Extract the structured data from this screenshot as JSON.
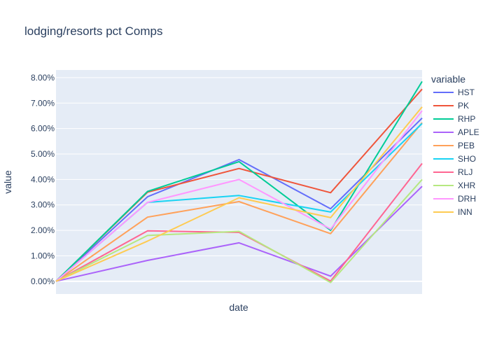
{
  "chart_data": {
    "type": "line",
    "title": "lodging/resorts pct Comps",
    "xlabel": "date",
    "ylabel": "value",
    "legend_title": "variable",
    "legend_position": "right",
    "grid": true,
    "background_color": "#E5ECF6",
    "ylim": [
      -0.005,
      0.083
    ],
    "yticks": [
      0,
      0.01,
      0.02,
      0.03,
      0.04,
      0.05,
      0.06,
      0.07,
      0.08
    ],
    "ytick_labels": [
      "0.00%",
      "1.00%",
      "2.00%",
      "3.00%",
      "4.00%",
      "5.00%",
      "6.00%",
      "7.00%",
      "8.00%"
    ],
    "series": [
      {
        "name": "HST",
        "color": "#636EFA",
        "values": [
          0,
          0.0332,
          0.0478,
          0.0285,
          0.0641
        ]
      },
      {
        "name": "PK",
        "color": "#EF553B",
        "values": [
          0,
          0.035,
          0.0443,
          0.0348,
          0.0755
        ]
      },
      {
        "name": "RHP",
        "color": "#00CC96",
        "values": [
          0,
          0.0353,
          0.047,
          0.02,
          0.0785
        ]
      },
      {
        "name": "APLE",
        "color": "#AB63FA",
        "values": [
          0,
          0.0082,
          0.0151,
          0.002,
          0.0373
        ]
      },
      {
        "name": "PEB",
        "color": "#FFA15A",
        "values": [
          0,
          0.0252,
          0.0313,
          0.0187,
          0.0623
        ]
      },
      {
        "name": "SHO",
        "color": "#19D3F3",
        "values": [
          0,
          0.031,
          0.0337,
          0.0272,
          0.062
        ]
      },
      {
        "name": "RLJ",
        "color": "#FF6692",
        "values": [
          0,
          0.0198,
          0.0192,
          0.0001,
          0.0463
        ]
      },
      {
        "name": "XHR",
        "color": "#B6E880",
        "values": [
          0,
          0.018,
          0.0196,
          -0.0005,
          0.04
        ]
      },
      {
        "name": "DRH",
        "color": "#FF97FF",
        "values": [
          0,
          0.031,
          0.04,
          0.0205,
          0.067
        ]
      },
      {
        "name": "INN",
        "color": "#FECB52",
        "values": [
          0,
          0.0158,
          0.0328,
          0.025,
          0.0685
        ]
      }
    ]
  }
}
